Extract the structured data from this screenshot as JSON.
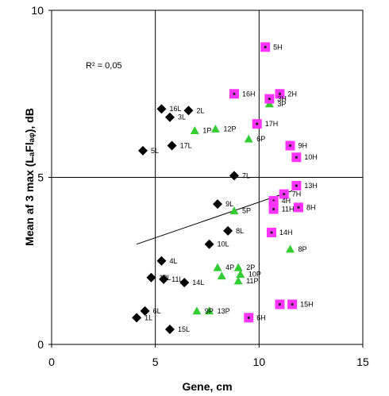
{
  "chart_data": {
    "type": "scatter",
    "xlabel": "Gene, cm",
    "ylabel": "Mean af 3 max (LₐFlₐᵩ), dB",
    "xlim": [
      0,
      15
    ],
    "ylim": [
      0,
      10
    ],
    "x_ticks": [
      "0",
      "5",
      "10",
      "15"
    ],
    "y_ticks": [
      "0",
      "5",
      "10"
    ],
    "grid": "major gridlines at x=5, x=10 and y=5",
    "annotation": "R² = 0,05",
    "trendline": {
      "x": [
        4.1,
        11.6
      ],
      "y": [
        3.0,
        4.6
      ]
    },
    "series": [
      {
        "marker": "diamond",
        "color": "#000000",
        "points": [
          {
            "label": "16L",
            "x": 5.3,
            "y": 7.05
          },
          {
            "label": "2L",
            "x": 6.6,
            "y": 7.0
          },
          {
            "label": "3L",
            "x": 5.7,
            "y": 6.8
          },
          {
            "label": "17L",
            "x": 5.8,
            "y": 5.95
          },
          {
            "label": "5L",
            "x": 4.4,
            "y": 5.8
          },
          {
            "label": "7L",
            "x": 8.8,
            "y": 5.05
          },
          {
            "label": "9L",
            "x": 8.0,
            "y": 4.2
          },
          {
            "label": "8L",
            "x": 8.5,
            "y": 3.4
          },
          {
            "label": "10L",
            "x": 7.6,
            "y": 3.0
          },
          {
            "label": "4L",
            "x": 5.3,
            "y": 2.5
          },
          {
            "label": "12L",
            "x": 4.8,
            "y": 2.0
          },
          {
            "label": "11L",
            "x": 5.4,
            "y": 1.95
          },
          {
            "label": "14L",
            "x": 6.4,
            "y": 1.85
          },
          {
            "label": "6L",
            "x": 4.5,
            "y": 1.0
          },
          {
            "label": "1L",
            "x": 4.1,
            "y": 0.8
          },
          {
            "label": "15L",
            "x": 5.7,
            "y": 0.45
          }
        ]
      },
      {
        "marker": "triangle",
        "color": "#33cc33",
        "points": [
          {
            "label": "1P",
            "x": 6.9,
            "y": 6.4
          },
          {
            "label": "12P",
            "x": 7.9,
            "y": 6.45
          },
          {
            "label": "6P",
            "x": 9.5,
            "y": 6.15
          },
          {
            "label": "3P",
            "x": 10.5,
            "y": 7.2
          },
          {
            "label": "5P",
            "x": 8.8,
            "y": 4.0
          },
          {
            "label": "4P",
            "x": 8.0,
            "y": 2.3
          },
          {
            "label": "2P",
            "x": 9.0,
            "y": 2.3
          },
          {
            "label": "",
            "x": 8.2,
            "y": 2.05
          },
          {
            "label": "10P",
            "x": 9.1,
            "y": 2.1
          },
          {
            "label": "11P",
            "x": 9.0,
            "y": 1.9
          },
          {
            "label": "8P",
            "x": 11.5,
            "y": 2.85
          },
          {
            "label": "9P",
            "x": 7.0,
            "y": 1.0
          },
          {
            "label": "13P",
            "x": 7.6,
            "y": 1.0
          }
        ]
      },
      {
        "marker": "square",
        "color": "#ff33ff",
        "points": [
          {
            "label": "5H",
            "x": 10.3,
            "y": 8.9
          },
          {
            "label": "16H",
            "x": 8.8,
            "y": 7.5
          },
          {
            "label": "2H",
            "x": 11.0,
            "y": 7.5
          },
          {
            "label": "3H",
            "x": 10.5,
            "y": 7.35
          },
          {
            "label": "17H",
            "x": 9.9,
            "y": 6.6
          },
          {
            "label": "9H",
            "x": 11.5,
            "y": 5.95
          },
          {
            "label": "10H",
            "x": 11.8,
            "y": 5.6
          },
          {
            "label": "13H",
            "x": 11.8,
            "y": 4.75
          },
          {
            "label": "7H",
            "x": 11.2,
            "y": 4.5
          },
          {
            "label": "4H",
            "x": 10.7,
            "y": 4.3
          },
          {
            "label": "",
            "x": 10.7,
            "y": 4.15
          },
          {
            "label": "11H",
            "x": 10.7,
            "y": 4.05
          },
          {
            "label": "8H",
            "x": 11.9,
            "y": 4.1
          },
          {
            "label": "14H",
            "x": 10.6,
            "y": 3.35
          },
          {
            "label": "15H",
            "x": 11.6,
            "y": 1.2
          },
          {
            "label": "",
            "x": 11.0,
            "y": 1.2
          },
          {
            "label": "6H",
            "x": 9.5,
            "y": 0.8
          }
        ]
      }
    ]
  }
}
